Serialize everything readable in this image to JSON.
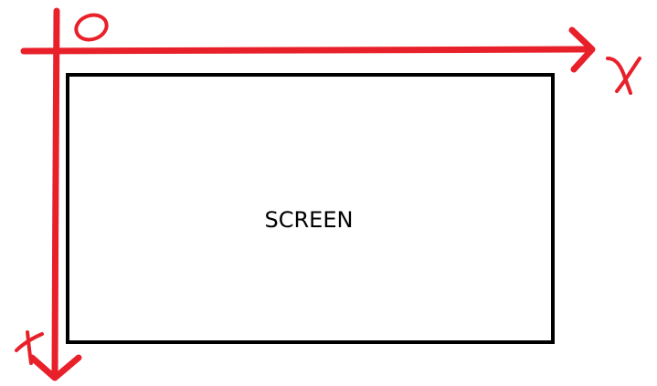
{
  "diagram": {
    "screen_label": "SCREEN",
    "origin_label": "0",
    "x_axis_label": "x",
    "y_axis_label": "y"
  },
  "colors": {
    "axis": "#e8202a",
    "screen_border": "#000000",
    "background": "#ffffff"
  }
}
